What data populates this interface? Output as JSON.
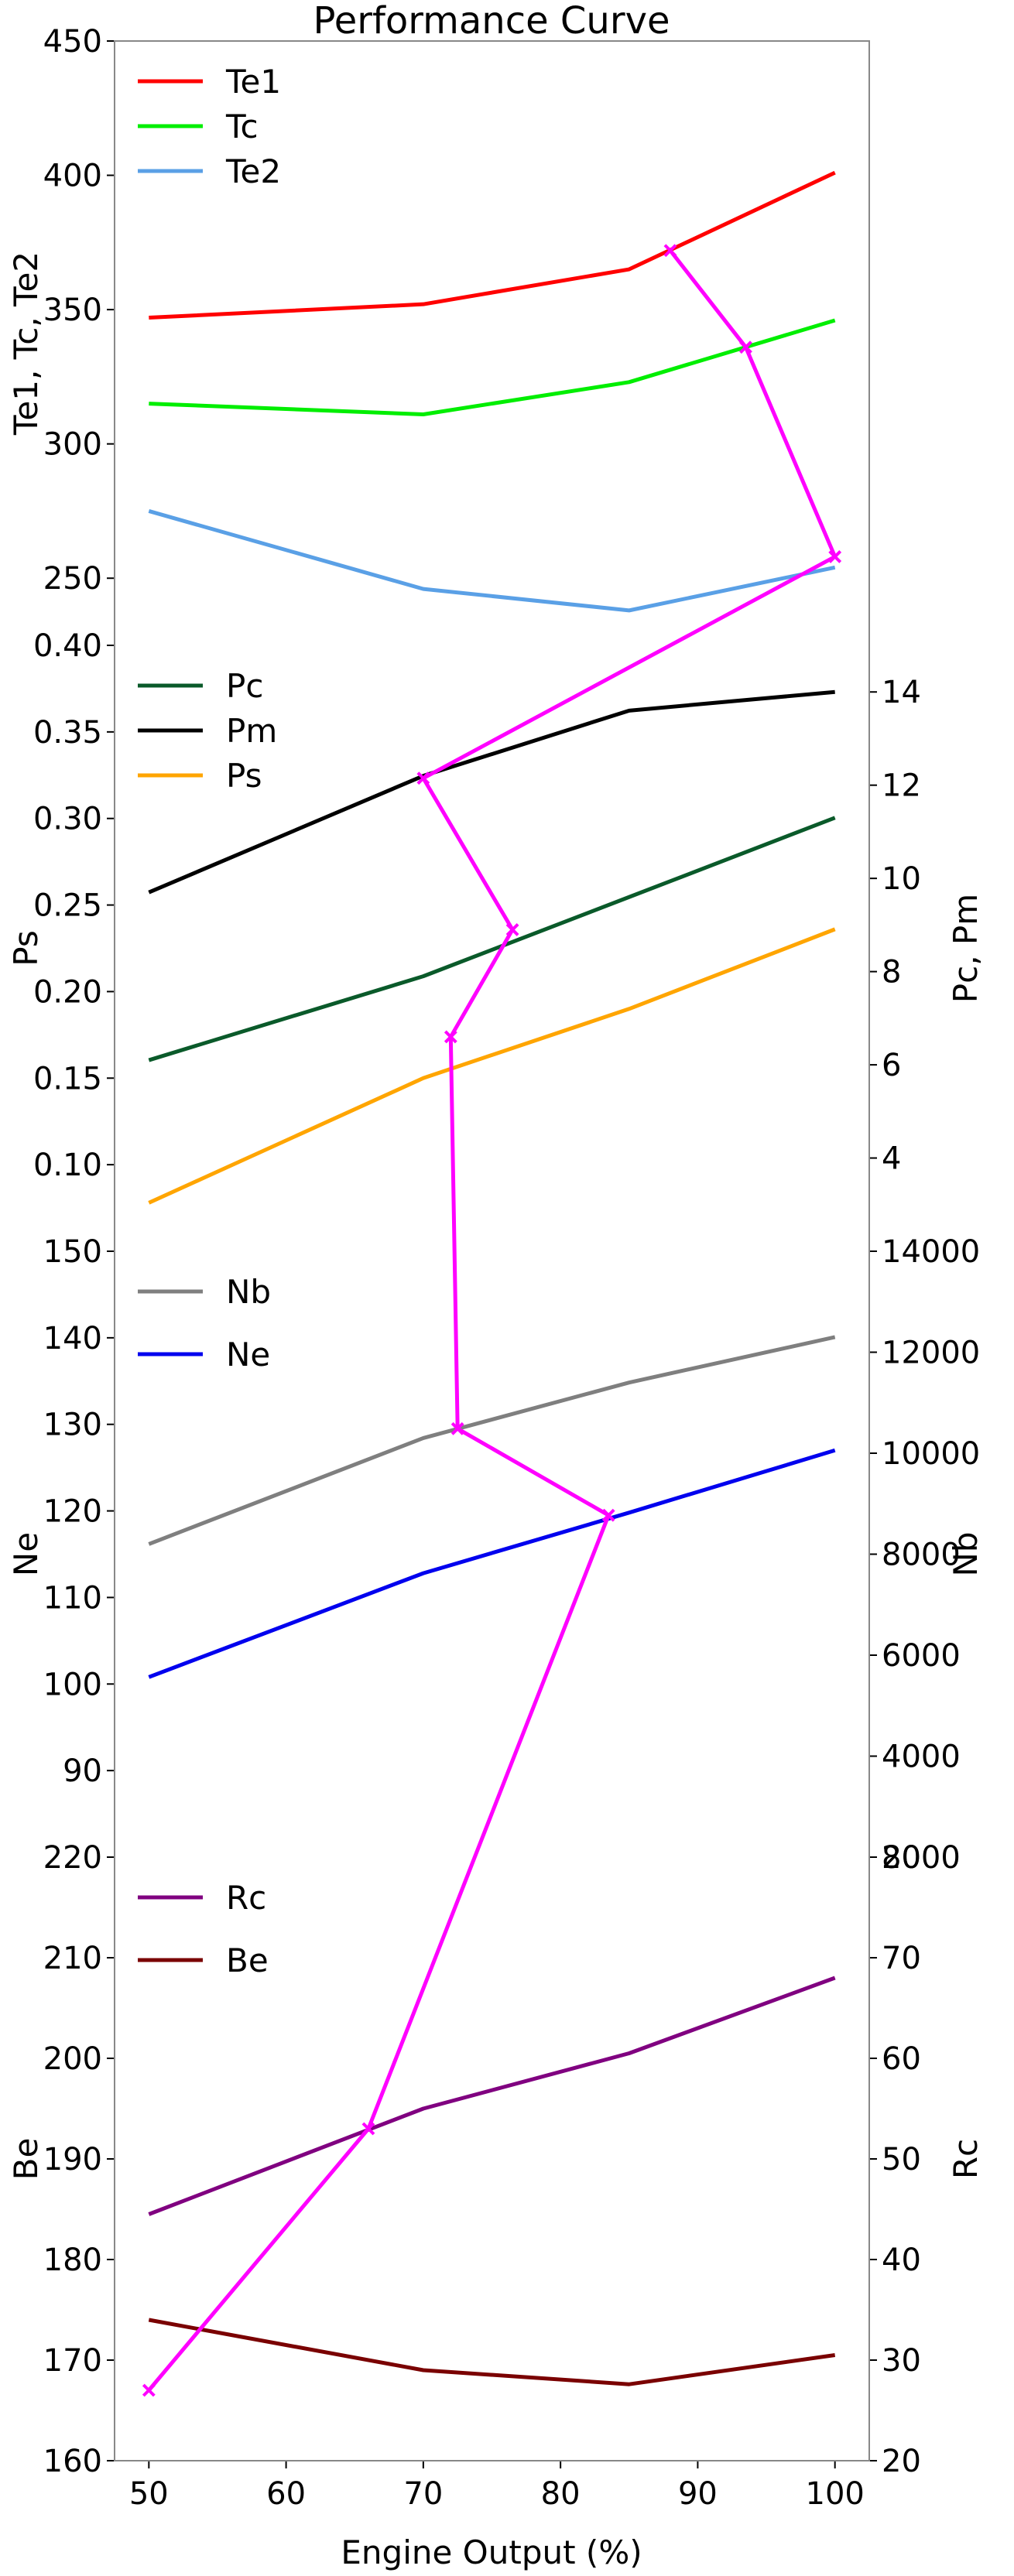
{
  "chart_data": {
    "type": "line",
    "title": "Performance Curve",
    "xlabel": "Engine Output (%)",
    "x": [
      50,
      70,
      85,
      100
    ],
    "xlim": [
      47.5,
      102.5
    ],
    "xticks": [
      50,
      60,
      70,
      80,
      90,
      100
    ],
    "panels": [
      {
        "id": "temperature",
        "ylabel_left": "Te1, Tc, Te2",
        "ylim_left": [
          225,
          450
        ],
        "yticks_left": [
          250,
          300,
          350,
          400,
          450
        ],
        "legend": [
          "Te1",
          "Tc",
          "Te2"
        ],
        "series": [
          {
            "name": "Te1",
            "axis": "left",
            "color": "#ff0000",
            "values": [
              347,
              352,
              365,
              401
            ]
          },
          {
            "name": "Tc",
            "axis": "left",
            "color": "#00ee00",
            "values": [
              315,
              311,
              323,
              346
            ]
          },
          {
            "name": "Te2",
            "axis": "left",
            "color": "#5aa0e6",
            "values": [
              275,
              246,
              238,
              254
            ]
          }
        ]
      },
      {
        "id": "pressure",
        "ylabel_left": "Ps",
        "ylabel_right": "Pc, Pm",
        "ylim_left": [
          0.05,
          0.4
        ],
        "yticks_left": [
          0.1,
          0.15,
          0.2,
          0.25,
          0.3,
          0.35,
          0.4
        ],
        "ylim_right": [
          2,
          15
        ],
        "yticks_right": [
          4,
          6,
          8,
          10,
          12,
          14
        ],
        "legend": [
          "Pc",
          "Pm",
          "Ps"
        ],
        "series": [
          {
            "name": "Pc",
            "axis": "right",
            "color": "#0a5a2a",
            "values": [
              6.1,
              7.9,
              9.6,
              11.3
            ]
          },
          {
            "name": "Pm",
            "axis": "right",
            "color": "#000000",
            "values": [
              9.7,
              12.2,
              13.6,
              14.0
            ]
          },
          {
            "name": "Ps",
            "axis": "left",
            "color": "#ffa500",
            "values": [
              0.078,
              0.15,
              0.19,
              0.236
            ]
          }
        ]
      },
      {
        "id": "speed",
        "ylabel_left": "Ne",
        "ylabel_right": "Nb",
        "ylim_left": [
          80,
          150
        ],
        "yticks_left": [
          90,
          100,
          110,
          120,
          130,
          140,
          150
        ],
        "ylim_right": [
          2000,
          14000
        ],
        "yticks_right": [
          2000,
          4000,
          6000,
          8000,
          10000,
          12000,
          14000
        ],
        "legend": [
          "Nb",
          "Ne"
        ],
        "series": [
          {
            "name": "Nb",
            "axis": "right",
            "color": "#7f7f7f",
            "values": [
              8200,
              10300,
              11400,
              12300
            ]
          },
          {
            "name": "Ne",
            "axis": "left",
            "color": "#0000ee",
            "values": [
              100.8,
              112.8,
              119.8,
              127.0
            ]
          }
        ]
      },
      {
        "id": "consumption",
        "ylabel_left": "Be",
        "ylabel_right": "Rc",
        "ylim_left": [
          160,
          220
        ],
        "yticks_left": [
          160,
          170,
          180,
          190,
          200,
          210,
          220
        ],
        "ylim_right": [
          20,
          80
        ],
        "yticks_right": [
          20,
          30,
          40,
          50,
          60,
          70,
          80
        ],
        "legend": [
          "Rc",
          "Be"
        ],
        "series": [
          {
            "name": "Rc",
            "axis": "right",
            "color": "#800080",
            "values": [
              44.5,
              55.0,
              60.5,
              68.0
            ]
          },
          {
            "name": "Be",
            "axis": "left",
            "color": "#7a0000",
            "values": [
              174.0,
              169.0,
              167.6,
              170.5
            ]
          }
        ]
      }
    ],
    "overlay": {
      "color": "#ff00ff",
      "marker": "x",
      "points": [
        {
          "panel": 0,
          "x": 88,
          "y": 372
        },
        {
          "panel": 0,
          "x": 93.5,
          "y": 336
        },
        {
          "panel": 0,
          "x": 100,
          "y": 258
        },
        {
          "panel": 1,
          "axis": "right",
          "x": 70,
          "y": 12.15
        },
        {
          "panel": 1,
          "axis": "right",
          "x": 76.5,
          "y": 8.9
        },
        {
          "panel": 1,
          "axis": "right",
          "x": 72,
          "y": 6.6
        },
        {
          "panel": 2,
          "x": 72.5,
          "y": 129.5
        },
        {
          "panel": 2,
          "x": 83.5,
          "y": 119.5
        },
        {
          "panel": 3,
          "x": 66,
          "y": 193
        },
        {
          "panel": 3,
          "x": 50,
          "y": 167
        }
      ]
    }
  }
}
